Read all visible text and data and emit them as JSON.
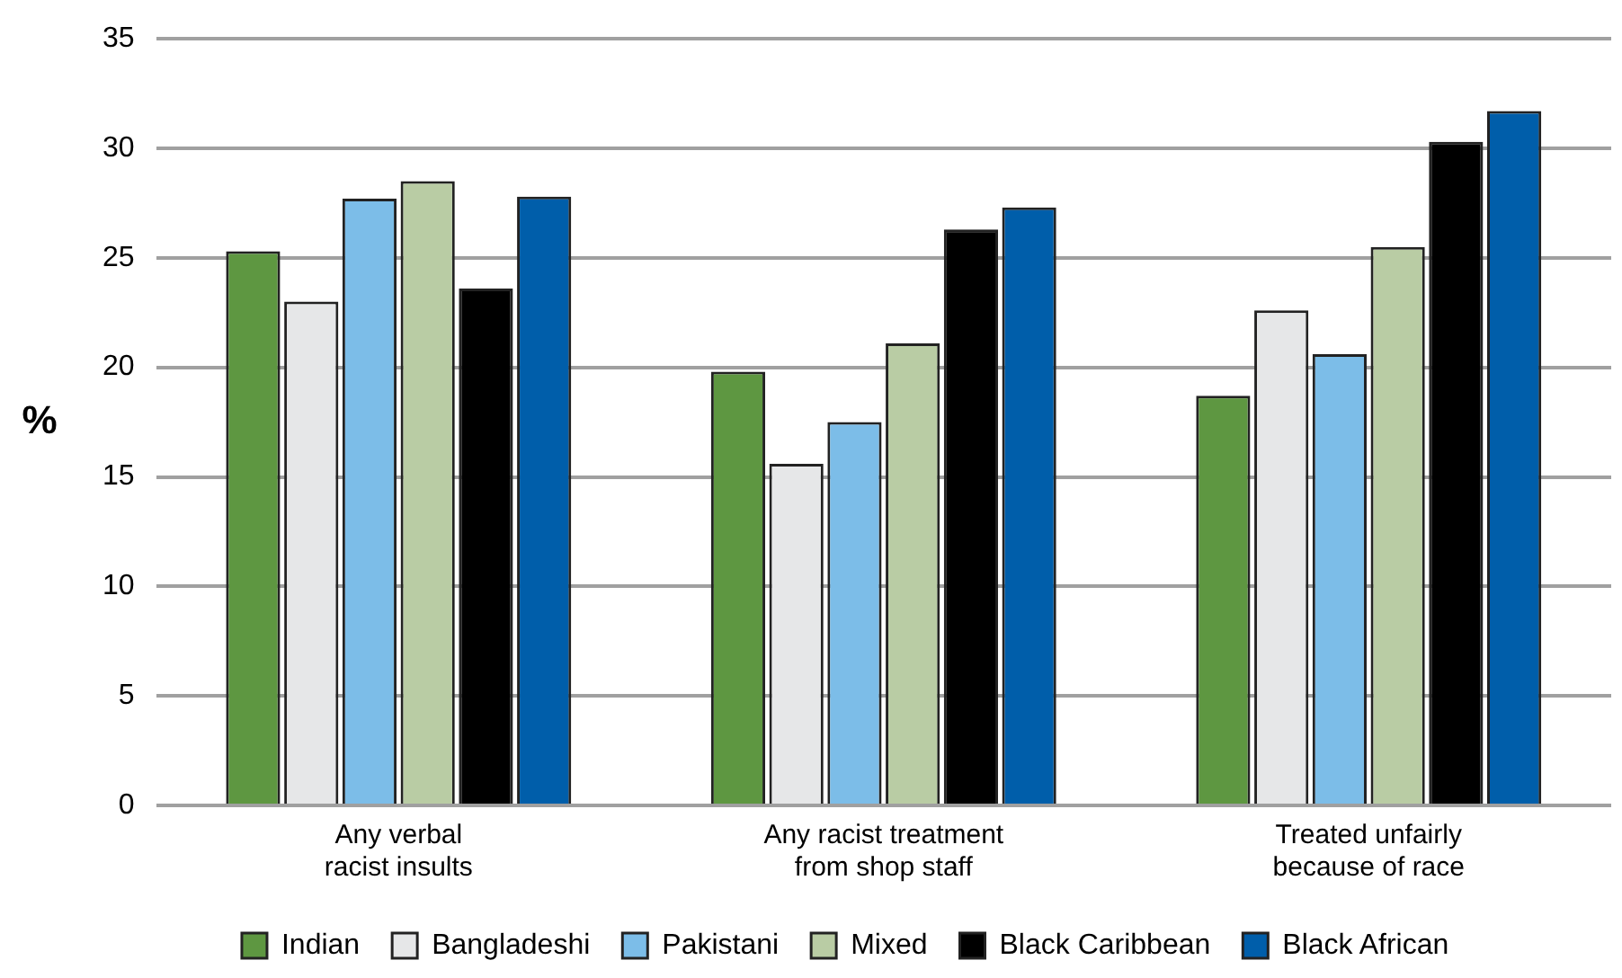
{
  "chart_data": {
    "type": "bar",
    "ylabel": "%",
    "categories": [
      "Any verbal\nracist insults",
      "Any racist treatment\nfrom shop staff",
      "Treated unfairly\nbecause of race"
    ],
    "series": [
      {
        "name": "Indian",
        "color": "#5e9741",
        "values": [
          25.3,
          19.8,
          18.7
        ]
      },
      {
        "name": "Bangladeshi",
        "color": "#e6e7e8",
        "values": [
          23.0,
          15.6,
          22.6
        ]
      },
      {
        "name": "Pakistani",
        "color": "#7cbde8",
        "values": [
          27.7,
          17.5,
          20.6
        ]
      },
      {
        "name": "Mixed",
        "color": "#b9cca4",
        "values": [
          28.5,
          21.1,
          25.5
        ]
      },
      {
        "name": "Black Caribbean",
        "color": "#000000",
        "values": [
          23.6,
          26.3,
          30.3
        ]
      },
      {
        "name": "Black African",
        "color": "#005eaa",
        "values": [
          27.8,
          27.3,
          31.7
        ]
      }
    ],
    "ylim": [
      0,
      35
    ],
    "yticks": [
      0,
      5,
      10,
      15,
      20,
      25,
      30,
      35
    ],
    "grid": "y",
    "legend": "bottom"
  }
}
